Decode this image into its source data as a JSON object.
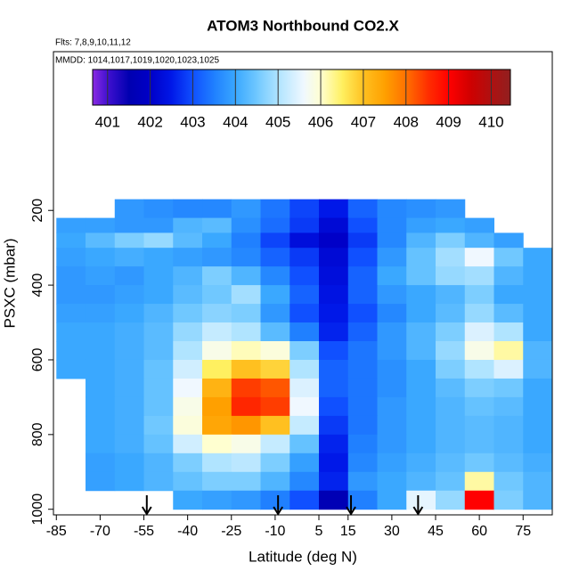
{
  "chart_data": {
    "type": "curtain",
    "title": "ATOM3 Northbound CO2.X",
    "subtitle": "Flts: 7,8,9,10,11,12",
    "annotation": "MMDD: 1014,1017,1019,1020,1023,1025",
    "xlabel": "Latitude (deg N)",
    "ylabel": "PSXC (mbar)",
    "xlim": [
      -86,
      85
    ],
    "ylim": [
      1015,
      -225
    ],
    "xticks": [
      -85,
      -70,
      -55,
      -40,
      -25,
      -10,
      5,
      15,
      30,
      45,
      60,
      75
    ],
    "yticks": [
      200,
      400,
      600,
      800,
      1000
    ],
    "lats": [
      -80,
      -70,
      -60,
      -50,
      -40,
      -30,
      -20,
      -10,
      0,
      10,
      20,
      30,
      40,
      50,
      60,
      70,
      80
    ],
    "pressure_edges": [
      170,
      220,
      260,
      300,
      350,
      400,
      450,
      500,
      550,
      600,
      650,
      700,
      750,
      800,
      850,
      900,
      950,
      1000
    ],
    "values": [
      [
        null,
        null,
        403.8,
        403.7,
        403.6,
        403.6,
        403.8,
        403.4,
        402.9,
        402.5,
        403.2,
        403.6,
        403.7,
        403.8,
        null,
        null,
        null
      ],
      [
        403.9,
        403.9,
        403.8,
        403.8,
        404.2,
        404.3,
        403.7,
        403.3,
        402.8,
        402.2,
        403.0,
        403.6,
        403.9,
        404.0,
        403.9,
        null,
        null
      ],
      [
        404.0,
        404.3,
        404.6,
        404.8,
        404.3,
        404.0,
        403.5,
        402.9,
        402.3,
        402.0,
        402.8,
        403.6,
        404.2,
        404.6,
        404.2,
        403.9,
        null
      ],
      [
        403.9,
        404.0,
        404.1,
        404.0,
        403.9,
        403.8,
        403.6,
        403.2,
        402.8,
        402.2,
        403.0,
        403.8,
        404.4,
        404.9,
        405.6,
        404.5,
        404.0
      ],
      [
        403.8,
        403.9,
        403.8,
        404.0,
        404.2,
        404.6,
        404.2,
        403.6,
        403.0,
        402.3,
        403.2,
        404.0,
        404.4,
        404.8,
        404.9,
        404.2,
        404.0
      ],
      [
        403.8,
        403.8,
        403.9,
        404.0,
        404.3,
        404.5,
        404.9,
        404.0,
        403.2,
        402.4,
        403.2,
        403.8,
        404.0,
        404.2,
        404.6,
        404.0,
        404.0
      ],
      [
        403.9,
        403.9,
        404.0,
        404.2,
        404.5,
        404.7,
        404.6,
        403.8,
        403.0,
        402.5,
        403.0,
        403.6,
        404.0,
        404.3,
        404.8,
        404.3,
        404.0
      ],
      [
        404.0,
        404.0,
        404.1,
        404.3,
        404.8,
        405.2,
        405.0,
        404.3,
        403.5,
        402.6,
        403.2,
        403.8,
        404.2,
        404.6,
        405.4,
        405.0,
        404.0
      ],
      [
        404.0,
        404.0,
        404.1,
        404.3,
        405.0,
        405.8,
        406.1,
        405.9,
        404.6,
        403.0,
        403.4,
        403.8,
        404.2,
        404.8,
        405.8,
        406.2,
        404.2
      ],
      [
        404.0,
        404.0,
        404.1,
        404.4,
        405.3,
        406.5,
        407.0,
        406.8,
        405.0,
        403.2,
        403.4,
        403.7,
        404.0,
        404.6,
        405.0,
        405.4,
        404.2
      ],
      [
        null,
        404.0,
        404.1,
        404.4,
        405.6,
        407.2,
        408.4,
        408.2,
        405.4,
        403.2,
        403.4,
        403.7,
        404.0,
        404.3,
        404.6,
        404.5,
        404.0
      ],
      [
        null,
        404.0,
        404.1,
        404.4,
        405.8,
        407.5,
        408.6,
        408.4,
        405.6,
        403.0,
        403.4,
        403.8,
        404.0,
        404.2,
        404.4,
        404.3,
        404.0
      ],
      [
        null,
        404.0,
        404.1,
        404.5,
        405.9,
        407.4,
        407.6,
        407.0,
        405.2,
        402.8,
        403.4,
        403.8,
        404.0,
        404.2,
        404.3,
        404.2,
        404.0
      ],
      [
        null,
        404.0,
        404.1,
        404.4,
        405.3,
        406.0,
        405.8,
        405.2,
        404.4,
        402.6,
        403.5,
        403.8,
        404.0,
        404.2,
        404.3,
        404.2,
        404.0
      ],
      [
        null,
        403.9,
        404.0,
        404.2,
        404.6,
        405.0,
        405.1,
        404.6,
        403.9,
        402.5,
        403.6,
        403.9,
        404.1,
        404.3,
        404.5,
        404.3,
        404.1
      ],
      [
        null,
        403.9,
        404.0,
        404.2,
        404.4,
        404.6,
        404.6,
        404.2,
        403.6,
        402.6,
        403.8,
        404.0,
        404.2,
        404.4,
        406.2,
        404.5,
        404.2
      ],
      [
        null,
        null,
        null,
        null,
        404.0,
        403.9,
        403.8,
        403.5,
        403.0,
        401.6,
        403.5,
        404.0,
        405.5,
        404.8,
        409.0,
        404.6,
        404.2
      ]
    ],
    "arrow_lats": [
      -54,
      -9,
      16,
      39
    ],
    "colorbar_lim": [
      400.65,
      410.45
    ],
    "colorbar_ticks": [
      401,
      402,
      403,
      404,
      405,
      406,
      407,
      408,
      409,
      410
    ],
    "colorscale": [
      {
        "value": 400.65,
        "color": "#8a2be2"
      },
      {
        "value": 401,
        "color": "#4010d0"
      },
      {
        "value": 401.5,
        "color": "#0000b0"
      },
      {
        "value": 402,
        "color": "#0000c8"
      },
      {
        "value": 402.5,
        "color": "#0018e8"
      },
      {
        "value": 403,
        "color": "#1050ff"
      },
      {
        "value": 403.5,
        "color": "#2080ff"
      },
      {
        "value": 404,
        "color": "#3aa8ff"
      },
      {
        "value": 404.5,
        "color": "#70c8ff"
      },
      {
        "value": 405,
        "color": "#b0e4ff"
      },
      {
        "value": 405.6,
        "color": "#f0f8ff"
      },
      {
        "value": 406,
        "color": "#ffffd0"
      },
      {
        "value": 406.5,
        "color": "#fff060"
      },
      {
        "value": 407,
        "color": "#ffc020"
      },
      {
        "value": 407.5,
        "color": "#ffa000"
      },
      {
        "value": 408,
        "color": "#ff7000"
      },
      {
        "value": 408.5,
        "color": "#ff3000"
      },
      {
        "value": 409,
        "color": "#ff0000"
      },
      {
        "value": 409.5,
        "color": "#d00000"
      },
      {
        "value": 410.45,
        "color": "#902020"
      }
    ]
  }
}
